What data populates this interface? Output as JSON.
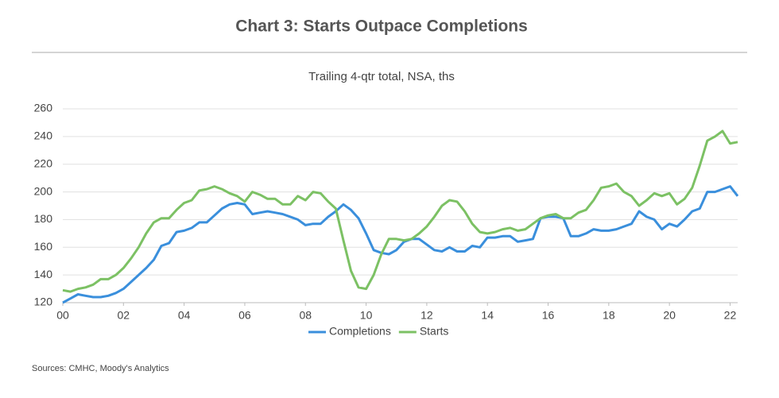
{
  "chart_data": {
    "type": "line",
    "title": "Chart 3: Starts Outpace Completions",
    "subtitle": "Trailing 4-qtr total, NSA, ths",
    "source": "Sources: CMHC, Moody's Analytics",
    "x": [
      2000,
      2000.25,
      2000.5,
      2000.75,
      2001,
      2001.25,
      2001.5,
      2001.75,
      2002,
      2002.25,
      2002.5,
      2002.75,
      2003,
      2003.25,
      2003.5,
      2003.75,
      2004,
      2004.25,
      2004.5,
      2004.75,
      2005,
      2005.25,
      2005.5,
      2005.75,
      2006,
      2006.25,
      2006.5,
      2006.75,
      2007,
      2007.25,
      2007.5,
      2007.75,
      2008,
      2008.25,
      2008.5,
      2008.75,
      2009,
      2009.25,
      2009.5,
      2009.75,
      2010,
      2010.25,
      2010.5,
      2010.75,
      2011,
      2011.25,
      2011.5,
      2011.75,
      2012,
      2012.25,
      2012.5,
      2012.75,
      2013,
      2013.25,
      2013.5,
      2013.75,
      2014,
      2014.25,
      2014.5,
      2014.75,
      2015,
      2015.25,
      2015.5,
      2015.75,
      2016,
      2016.25,
      2016.5,
      2016.75,
      2017,
      2017.25,
      2017.5,
      2017.75,
      2018,
      2018.25,
      2018.5,
      2018.75,
      2019,
      2019.25,
      2019.5,
      2019.75,
      2020,
      2020.25,
      2020.5,
      2020.75,
      2021,
      2021.25,
      2021.5,
      2021.75,
      2022,
      2022.25
    ],
    "series": [
      {
        "name": "Completions",
        "color": "#3a8fdc",
        "values": [
          120,
          123,
          126,
          125,
          124,
          124,
          125,
          127,
          130,
          135,
          140,
          145,
          151,
          161,
          163,
          171,
          172,
          174,
          178,
          178,
          183,
          188,
          191,
          192,
          191,
          184,
          185,
          186,
          185,
          184,
          182,
          180,
          176,
          177,
          177,
          182,
          186,
          191,
          187,
          181,
          170,
          158,
          156,
          155,
          158,
          164,
          166,
          166,
          162,
          158,
          157,
          160,
          157,
          157,
          161,
          160,
          167,
          167,
          168,
          168,
          164,
          165,
          166,
          181,
          182,
          182,
          181,
          168,
          168,
          170,
          173,
          172,
          172,
          173,
          175,
          177,
          186,
          182,
          180,
          173,
          177,
          175,
          180,
          186,
          188,
          200,
          200,
          202,
          204,
          197
        ]
      },
      {
        "name": "Starts",
        "color": "#7cc164",
        "values": [
          129,
          128,
          130,
          131,
          133,
          137,
          137,
          140,
          145,
          152,
          160,
          170,
          178,
          181,
          181,
          187,
          192,
          194,
          201,
          202,
          204,
          202,
          199,
          197,
          193,
          200,
          198,
          195,
          195,
          191,
          191,
          197,
          194,
          200,
          199,
          193,
          188,
          165,
          143,
          131,
          130,
          140,
          155,
          166,
          166,
          165,
          166,
          170,
          175,
          182,
          190,
          194,
          193,
          186,
          177,
          171,
          170,
          171,
          173,
          174,
          172,
          173,
          177,
          181,
          183,
          184,
          181,
          181,
          185,
          187,
          194,
          203,
          204,
          206,
          200,
          197,
          190,
          194,
          199,
          197,
          199,
          191,
          195,
          203,
          219,
          237,
          240,
          244,
          235,
          236
        ]
      }
    ],
    "xlim": [
      2000,
      2022.25
    ],
    "xticks": [
      {
        "value": 2000,
        "label": "00"
      },
      {
        "value": 2002,
        "label": "02"
      },
      {
        "value": 2004,
        "label": "04"
      },
      {
        "value": 2006,
        "label": "06"
      },
      {
        "value": 2008,
        "label": "08"
      },
      {
        "value": 2010,
        "label": "10"
      },
      {
        "value": 2012,
        "label": "12"
      },
      {
        "value": 2014,
        "label": "14"
      },
      {
        "value": 2016,
        "label": "16"
      },
      {
        "value": 2018,
        "label": "18"
      },
      {
        "value": 2020,
        "label": "20"
      },
      {
        "value": 2022,
        "label": "22"
      }
    ],
    "ylim": [
      120,
      260
    ],
    "yticks": [
      120,
      140,
      160,
      180,
      200,
      220,
      240,
      260
    ],
    "grid": true
  }
}
